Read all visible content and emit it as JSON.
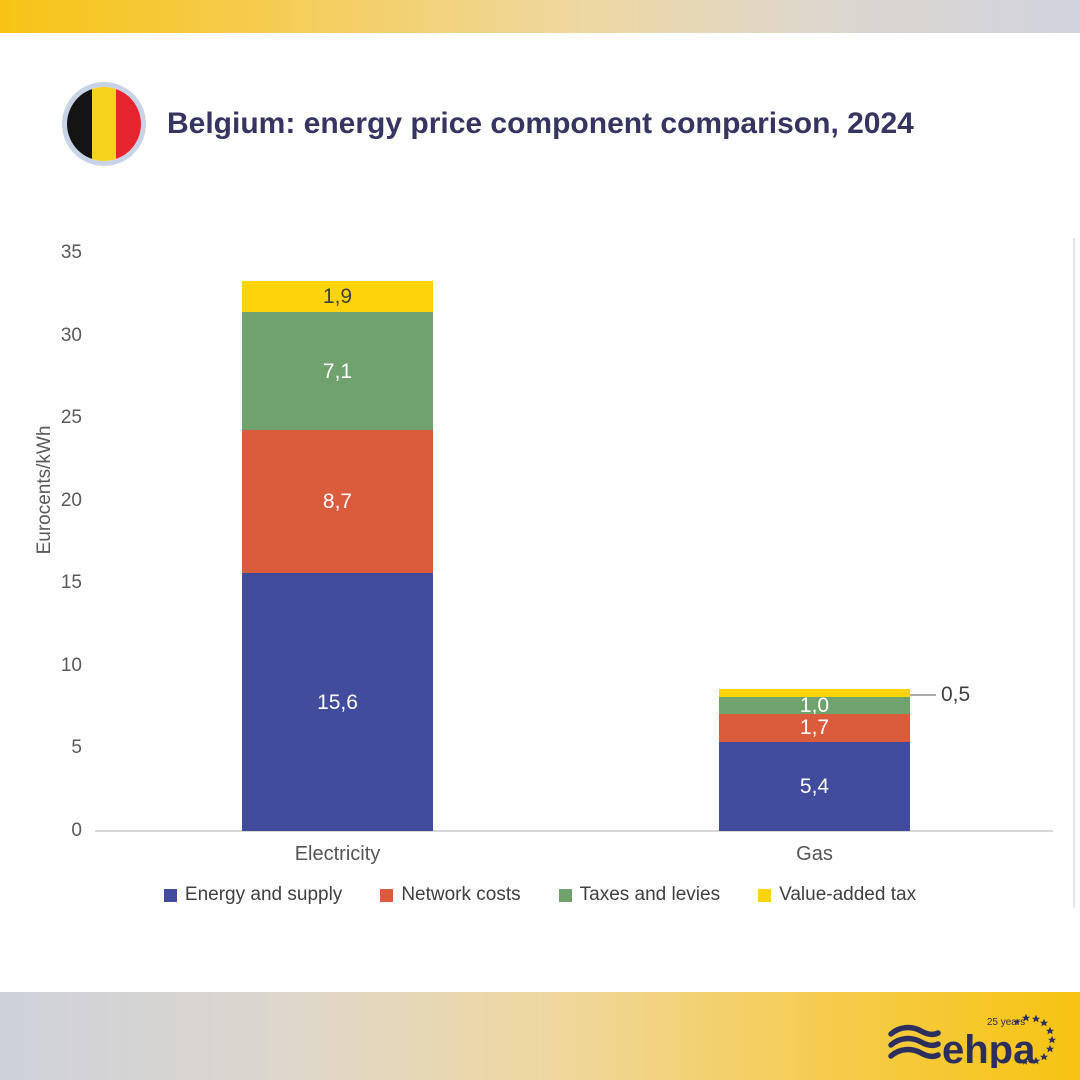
{
  "header": {
    "title": "Belgium: energy price component comparison, 2024"
  },
  "flag": {
    "name": "belgium-flag",
    "black": "#141414",
    "yellow": "#F6D21A",
    "red": "#E5242F",
    "ring": "#C8D4E6"
  },
  "chart_data": {
    "type": "bar",
    "stacked": true,
    "categories": [
      "Electricity",
      "Gas"
    ],
    "series": [
      {
        "name": "Energy and supply",
        "color": "#414C9C",
        "values": [
          15.6,
          5.4
        ],
        "display_labels": [
          "15,6",
          "5,4"
        ]
      },
      {
        "name": "Network costs",
        "color": "#DB5C3D",
        "values": [
          8.7,
          1.7
        ],
        "display_labels": [
          "8,7",
          "1,7"
        ]
      },
      {
        "name": "Taxes and levies",
        "color": "#6FA26C",
        "values": [
          7.1,
          1.0
        ],
        "display_labels": [
          "7,1",
          "1,0"
        ]
      },
      {
        "name": "Value-added tax",
        "color": "#FFD30A",
        "values": [
          1.9,
          0.5
        ],
        "display_labels": [
          "1,9",
          "0,5"
        ]
      }
    ],
    "ylabel": "Eurocents/kWh",
    "ylim": [
      0,
      35
    ],
    "ytick_labels": [
      "35",
      "30",
      "25",
      "20",
      "15",
      "10",
      "5",
      "0"
    ],
    "grid": false,
    "legend_position": "bottom",
    "callout": {
      "category": "Gas",
      "series": "Value-added tax",
      "label": "0,5"
    }
  },
  "footer": {
    "logo_text": "ehpa",
    "logo_years": "25 years"
  },
  "colors": {
    "title": "#363562",
    "axis_text": "#595959",
    "top_gradient_left": "#F7C414",
    "top_gradient_right": "#D1D3DE",
    "bottom_gradient_left": "#CED1DB",
    "bottom_gradient_right": "#F7C411",
    "logo_navy": "#2C2E5D"
  }
}
